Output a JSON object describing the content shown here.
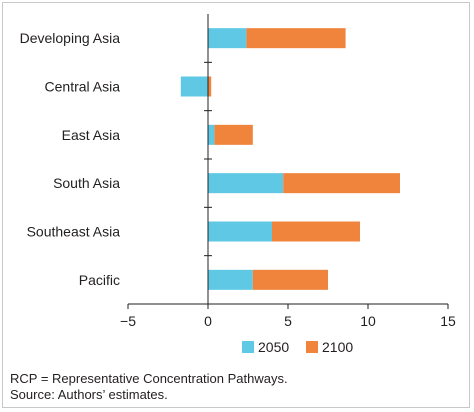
{
  "chart_data": {
    "type": "bar",
    "orientation": "horizontal",
    "stacked": true,
    "categories": [
      "Developing Asia",
      "Central Asia",
      "East Asia",
      "South Asia",
      "Southeast Asia",
      "Pacific"
    ],
    "series": [
      {
        "name": "2050",
        "color": "#5ec8e5",
        "values": [
          2.4,
          -1.7,
          0.4,
          4.7,
          4.0,
          2.8
        ]
      },
      {
        "name": "2100",
        "color": "#f0843c",
        "values": [
          6.2,
          0.2,
          2.4,
          7.3,
          5.5,
          4.7
        ]
      }
    ],
    "xlim": [
      -5,
      15
    ],
    "xticks": [
      "−5",
      "0",
      "5",
      "10",
      "15"
    ],
    "xtick_values": [
      -5,
      0,
      5,
      10,
      15
    ],
    "grid": false,
    "legend_position": "bottom-center"
  },
  "notes": {
    "line1": "RCP = Representative Concentration Pathways.",
    "line2": "Source: Authors’ estimates."
  }
}
